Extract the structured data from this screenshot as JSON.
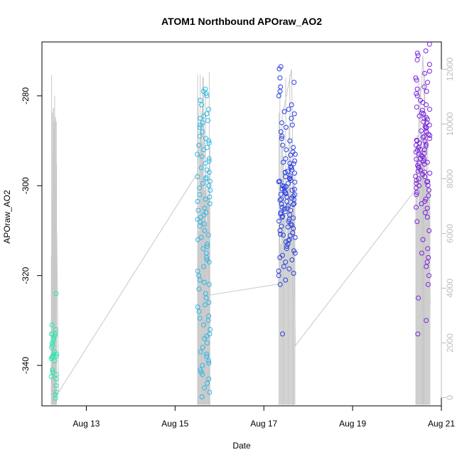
{
  "chart_data": {
    "type": "scatter",
    "title": "ATOM1 Northbound APOraw_AO2",
    "xlabel": "Date",
    "ylabel": "APOraw_AO2",
    "x_unit": "days (date axis)",
    "xlim": [
      "2020-08-12T00:00",
      "2020-08-21T00:00"
    ],
    "ylim": [
      -349,
      -268
    ],
    "y2lim": [
      -300,
      13000
    ],
    "x_ticks": [
      {
        "date": "2020-08-13",
        "label": "Aug 13"
      },
      {
        "date": "2020-08-15",
        "label": "Aug 15"
      },
      {
        "date": "2020-08-17",
        "label": "Aug 17"
      },
      {
        "date": "2020-08-19",
        "label": "Aug 19"
      },
      {
        "date": "2020-08-21",
        "label": "Aug 21"
      }
    ],
    "y_ticks": [
      -340,
      -320,
      -300,
      -280
    ],
    "y2_ticks": [
      0,
      2000,
      4000,
      6000,
      8000,
      10000,
      12000
    ],
    "grid": false,
    "colors": {
      "aug12": "#22e8b0",
      "aug15": "#2ab8e8",
      "aug17": "#2a3fe0",
      "aug20": "#7a22e0",
      "line": "#c8c8c8"
    },
    "series": [
      {
        "start": "2020-08-12T05:00",
        "end": "2020-08-12T08:00",
        "color": "aug12",
        "y": [
          -347.3,
          -324,
          -331,
          -332,
          -333,
          -334,
          -335,
          -336,
          -337.5,
          -338,
          -333.5,
          -333,
          -334.5,
          -337,
          -338.2,
          -338,
          -342,
          -343,
          -344.5,
          -346,
          -346.5,
          -341.5,
          -342.5,
          -335.5,
          -336,
          -338.5,
          -339,
          -341,
          -333,
          -337.5
        ]
      },
      {
        "start": "2020-08-15T12:00",
        "end": "2020-08-15T19:00",
        "color": "aug15",
        "y": [
          -279.5,
          -281,
          -283,
          -285,
          -288,
          -290,
          -291,
          -292,
          -293,
          -294,
          -295,
          -297,
          -298,
          -300,
          -302,
          -304,
          -305,
          -306,
          -307,
          -308,
          -309,
          -310,
          -312,
          -313,
          -315,
          -316,
          -318,
          -319,
          -320,
          -322,
          -323,
          -325,
          -326,
          -327,
          -329,
          -330,
          -332,
          -333,
          -335,
          -336,
          -337,
          -338,
          -339,
          -340,
          -341,
          -342,
          -343,
          -345,
          -347,
          -278.5,
          -280,
          -282,
          -284,
          -286,
          -289,
          -296,
          -299,
          -301,
          -303,
          -311,
          -317,
          -321,
          -324,
          -328,
          -331,
          -334,
          -344,
          -346,
          -279,
          -287,
          -314,
          -300.5,
          -298.5,
          -306.5,
          -308.5,
          -284.5,
          -291.5,
          -293.5,
          -296.5,
          -303.5,
          -311.5,
          -321.5,
          -329.5,
          -337.5,
          -341.5,
          -286.5,
          -289.5,
          -299.5,
          -305.5,
          -313.5,
          -285.5,
          -290.5,
          -294.5,
          -298.2,
          -302.5,
          -307.5,
          -316.5,
          -326.5,
          -333.5,
          -339.5
        ]
      },
      {
        "start": "2020-08-17T08:00",
        "end": "2020-08-17T17:00",
        "color": "aug17",
        "y": [
          -274,
          -273.5,
          -276,
          -278,
          -279,
          -280,
          -283,
          -284,
          -286,
          -288,
          -289,
          -290,
          -291,
          -292,
          -293,
          -294,
          -295,
          -296,
          -297,
          -298,
          -299,
          -300,
          -301,
          -302,
          -303,
          -304,
          -305,
          -306,
          -307,
          -308,
          -309,
          -310,
          -311,
          -312,
          -313,
          -314,
          -315,
          -316,
          -317,
          -318,
          -319,
          -320,
          -321,
          -322,
          -333,
          -277,
          -282,
          -285,
          -287,
          -292.5,
          -294.5,
          -296.5,
          -298.5,
          -299.5,
          -300.5,
          -301.5,
          -302.5,
          -303.5,
          -304.5,
          -305.5,
          -306.5,
          -307.5,
          -308.5,
          -309.5,
          -310.5,
          -311.5,
          -312.5,
          -313.5,
          -297.2,
          -299.2,
          -301.2,
          -303.2,
          -305.2,
          -307.2,
          -295.8,
          -298.8,
          -300.8,
          -302.8,
          -304.8,
          -306.8,
          -308.8,
          -310.8,
          -314.5,
          -316.5,
          -318.5,
          -293.2,
          -296.8,
          -300.2,
          -304.2,
          -309.2,
          -291.5,
          -294.8,
          -297.8,
          -301.8,
          -305.8,
          -289.5,
          -312.2,
          -315.5,
          -319.5,
          -286.5,
          -283.5,
          -298.3,
          -302.3,
          -306.3,
          -300.1,
          -303.1,
          -299.1,
          -301.9,
          -297.1,
          -307.9,
          -311.1,
          -295.1,
          -304.1,
          -300.7
        ]
      },
      {
        "start": "2020-08-20T10:00",
        "end": "2020-08-20T18:00",
        "color": "aug20",
        "y": [
          -268.5,
          -270,
          -271,
          -272,
          -275,
          -276,
          -277,
          -278,
          -279,
          -280,
          -281,
          -282,
          -283,
          -284,
          -285,
          -286,
          -287,
          -288,
          -289,
          -290,
          -291,
          -292,
          -293,
          -294,
          -295,
          -296,
          -297,
          -298,
          -299,
          -300,
          -301,
          -302,
          -303,
          -304,
          -305,
          -306,
          -307,
          -308,
          -310,
          -312,
          -314,
          -315,
          -316,
          -317,
          -318,
          -320,
          -322,
          -325,
          -330,
          -333,
          -270.5,
          -273,
          -274.5,
          -279.5,
          -282.5,
          -284.5,
          -286.5,
          -288.5,
          -289.5,
          -290.5,
          -291.5,
          -292.5,
          -293.5,
          -294.5,
          -295.5,
          -296.5,
          -297.5,
          -298.5,
          -299.5,
          -300.5,
          -301.5,
          -303.5,
          -283.2,
          -285.2,
          -287.2,
          -289.2,
          -291.2,
          -293.2,
          -295.2,
          -297.2,
          -299.2,
          -288.8,
          -290.8,
          -292.8,
          -294.8,
          -296.8,
          -298.8,
          -284.8,
          -286.8,
          -283.8,
          -285.8,
          -287.8,
          -281.5,
          -278.5,
          -276.5,
          -289.9,
          -291.9,
          -293.9,
          -295.9,
          -290.1,
          -292.1,
          -294.1,
          -297.9,
          -299.9,
          -302.2,
          -304.8
        ]
      }
    ],
    "line": [
      {
        "date": "2020-08-12T05:00",
        "y2": 1000
      },
      {
        "date": "2020-08-12T05:30",
        "y2": 5800
      },
      {
        "date": "2020-08-12T06:00",
        "y2": 7200
      },
      {
        "date": "2020-08-12T07:00",
        "y2": 6400
      },
      {
        "date": "2020-08-12T08:00",
        "y2": 6000
      },
      {
        "date": "2020-08-12T09:00",
        "y2": 200
      },
      {
        "date": "2020-08-15T12:00",
        "y2": 8200
      },
      {
        "date": "2020-08-15T15:00",
        "y2": 10800
      },
      {
        "date": "2020-08-15T19:00",
        "y2": 3750
      },
      {
        "date": "2020-08-17T08:00",
        "y2": 4150
      },
      {
        "date": "2020-08-17T10:00",
        "y2": 10300
      },
      {
        "date": "2020-08-17T15:00",
        "y2": 12000
      },
      {
        "date": "2020-08-17T17:00",
        "y2": 1900
      },
      {
        "date": "2020-08-20T10:00",
        "y2": 7600
      },
      {
        "date": "2020-08-20T14:00",
        "y2": 12500
      },
      {
        "date": "2020-08-20T18:00",
        "y2": 3400
      }
    ]
  }
}
